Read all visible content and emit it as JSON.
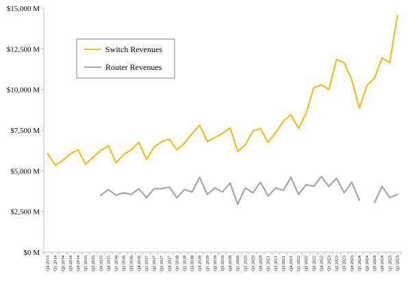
{
  "chart_data": {
    "type": "line",
    "title": "",
    "xlabel": "",
    "ylabel": "",
    "ylim": [
      0,
      15000
    ],
    "yticks": [
      0,
      2500,
      5000,
      7500,
      10000,
      12500,
      15000
    ],
    "ytick_labels": [
      "$0 M",
      "$2,500 M",
      "$5,000 M",
      "$7,500 M",
      "$10,000 M",
      "$12,500 M",
      "$15,000 M"
    ],
    "grid": "none",
    "legend_position": "upper-left-inside",
    "categories": [
      "Q4 2013",
      "Q1 2014",
      "Q2 2014",
      "Q3 2014",
      "Q4 2014",
      "Q1 2015",
      "Q2 2015",
      "Q3 2015",
      "Q4 2015",
      "Q1 2016",
      "Q2 2016",
      "Q3 2016",
      "Q4 2016",
      "Q1 2017",
      "Q2 2017",
      "Q3 2017",
      "Q4 2017",
      "Q1 2018",
      "Q2 2018",
      "Q3 2018",
      "Q4 2018",
      "Q1 2019",
      "Q2 2019",
      "Q3 2019",
      "Q4 2019",
      "Q1 2020",
      "Q2 2020",
      "Q3 2020",
      "Q4 2020",
      "Q1 2021",
      "Q2 2021",
      "Q3 2021",
      "Q4 2021",
      "Q1 2022",
      "Q2 2022",
      "Q3 2022",
      "Q4 2022",
      "Q1 2023",
      "Q2 2023",
      "Q3 2023",
      "Q4 2023",
      "Q1 2024",
      "Q2 2024",
      "Q3 2024",
      "Q4 2024",
      "Q1 2025",
      "Q2 2025"
    ],
    "series": [
      {
        "name": "Switch Revenues",
        "color": "#f2bf1a",
        "values": [
          6050,
          5350,
          5650,
          6050,
          6300,
          5400,
          5850,
          6250,
          6550,
          5500,
          6000,
          6300,
          6750,
          5700,
          6450,
          6800,
          6950,
          6300,
          6700,
          7300,
          7800,
          6800,
          7050,
          7300,
          7650,
          6200,
          6600,
          7450,
          7600,
          6750,
          7350,
          8050,
          8450,
          7600,
          8550,
          10100,
          10300,
          10000,
          11850,
          11650,
          10600,
          8850,
          10250,
          10700,
          11950,
          11650,
          14550
        ]
      },
      {
        "name": "Router Revenues",
        "color": "#a6a6a6",
        "values": [
          null,
          null,
          null,
          null,
          null,
          null,
          null,
          3500,
          3850,
          3500,
          3650,
          3550,
          3900,
          3350,
          3900,
          3900,
          4000,
          3350,
          3850,
          3700,
          4600,
          3550,
          3950,
          3700,
          4250,
          2950,
          3950,
          3650,
          4300,
          3450,
          3950,
          3800,
          4600,
          3550,
          4150,
          4050,
          4650,
          4050,
          4550,
          3650,
          4300,
          3200,
          null,
          3050,
          4050,
          3350,
          3550
        ]
      }
    ]
  }
}
